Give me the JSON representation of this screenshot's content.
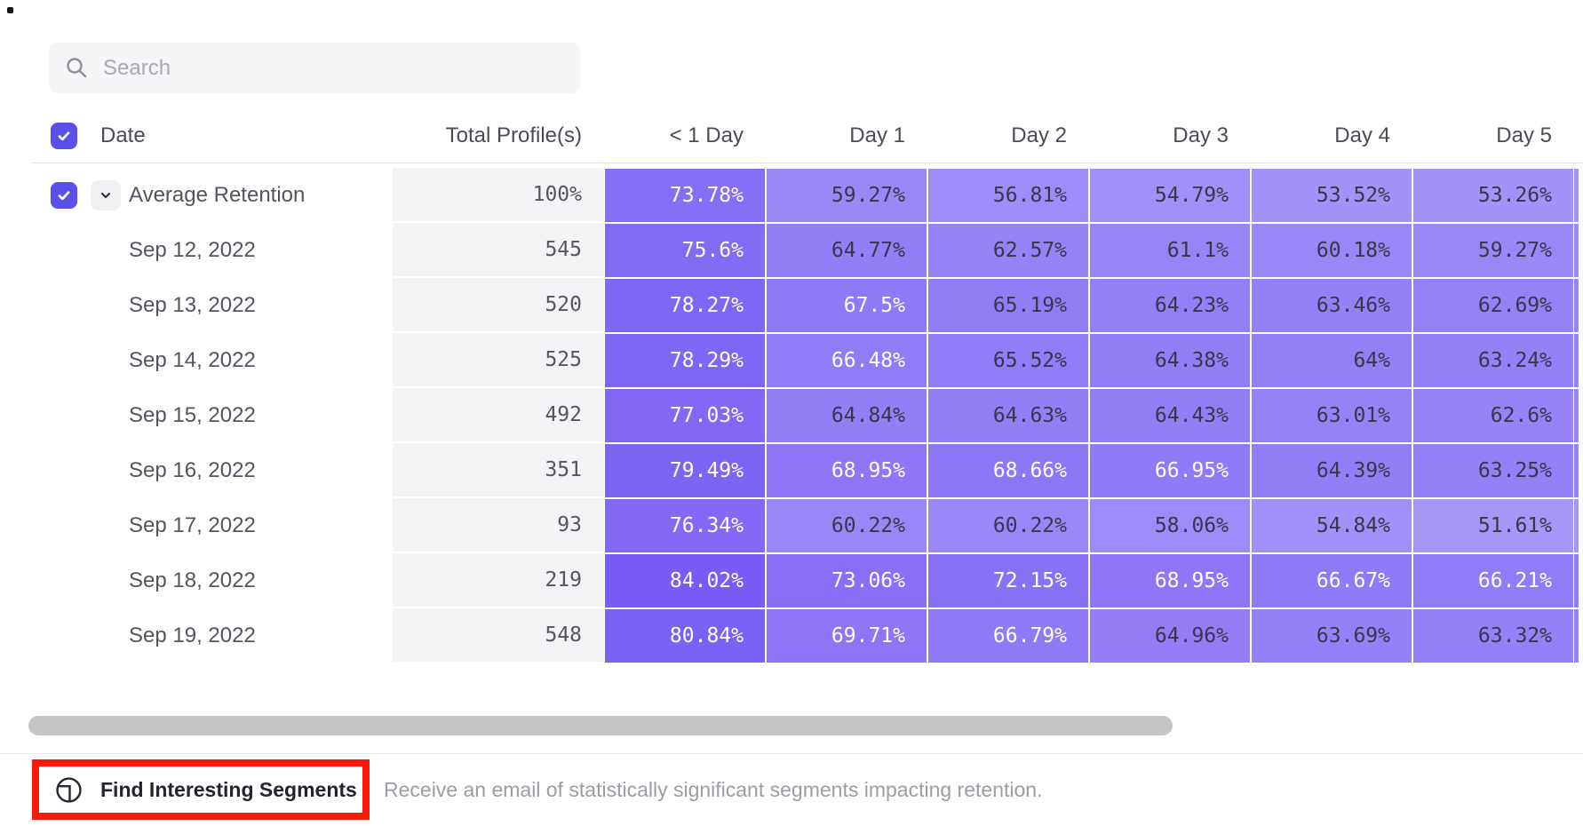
{
  "search": {
    "placeholder": "Search"
  },
  "colors": {
    "accent_checkbox": "#5a4fe8",
    "cell_text_dark": "#39364a",
    "cell_text_light": "#ffffff",
    "cell_hsl_hue": 251,
    "cell_hsl_saturation": 88,
    "annotation_red": "#f8190b",
    "total_column_bg": "#f4f4f6",
    "scrollbar_thumb": "#c5c5c7"
  },
  "icons": {
    "search": "magnifier-icon",
    "header_checkbox": "checkmark",
    "row_collapse": "chevron-down",
    "find_segments": "circle-segment-icon"
  },
  "table": {
    "date_header": "Date",
    "total_header": "Total Profile(s)",
    "day_headers": [
      "< 1 Day",
      "Day 1",
      "Day 2",
      "Day 3",
      "Day 4",
      "Day 5"
    ],
    "white_text_threshold": 66,
    "rows": [
      {
        "label": "Average Retention",
        "is_average": true,
        "total": "100%",
        "values": [
          "73.78%",
          "59.27%",
          "56.81%",
          "54.79%",
          "53.52%",
          "53.26%"
        ]
      },
      {
        "label": "Sep 12, 2022",
        "is_average": false,
        "total": "545",
        "values": [
          "75.6%",
          "64.77%",
          "62.57%",
          "61.1%",
          "60.18%",
          "59.27%"
        ]
      },
      {
        "label": "Sep 13, 2022",
        "is_average": false,
        "total": "520",
        "values": [
          "78.27%",
          "67.5%",
          "65.19%",
          "64.23%",
          "63.46%",
          "62.69%"
        ]
      },
      {
        "label": "Sep 14, 2022",
        "is_average": false,
        "total": "525",
        "values": [
          "78.29%",
          "66.48%",
          "65.52%",
          "64.38%",
          "64%",
          "63.24%"
        ]
      },
      {
        "label": "Sep 15, 2022",
        "is_average": false,
        "total": "492",
        "values": [
          "77.03%",
          "64.84%",
          "64.63%",
          "64.43%",
          "63.01%",
          "62.6%"
        ]
      },
      {
        "label": "Sep 16, 2022",
        "is_average": false,
        "total": "351",
        "values": [
          "79.49%",
          "68.95%",
          "68.66%",
          "66.95%",
          "64.39%",
          "63.25%"
        ]
      },
      {
        "label": "Sep 17, 2022",
        "is_average": false,
        "total": "93",
        "values": [
          "76.34%",
          "60.22%",
          "60.22%",
          "58.06%",
          "54.84%",
          "51.61%"
        ]
      },
      {
        "label": "Sep 18, 2022",
        "is_average": false,
        "total": "219",
        "values": [
          "84.02%",
          "73.06%",
          "72.15%",
          "68.95%",
          "66.67%",
          "66.21%"
        ]
      },
      {
        "label": "Sep 19, 2022",
        "is_average": false,
        "total": "548",
        "values": [
          "80.84%",
          "69.71%",
          "66.79%",
          "64.96%",
          "63.69%",
          "63.32%"
        ]
      }
    ]
  },
  "footer": {
    "button_label": "Find Interesting Segments",
    "description": "Receive an email of statistically significant segments impacting retention."
  }
}
